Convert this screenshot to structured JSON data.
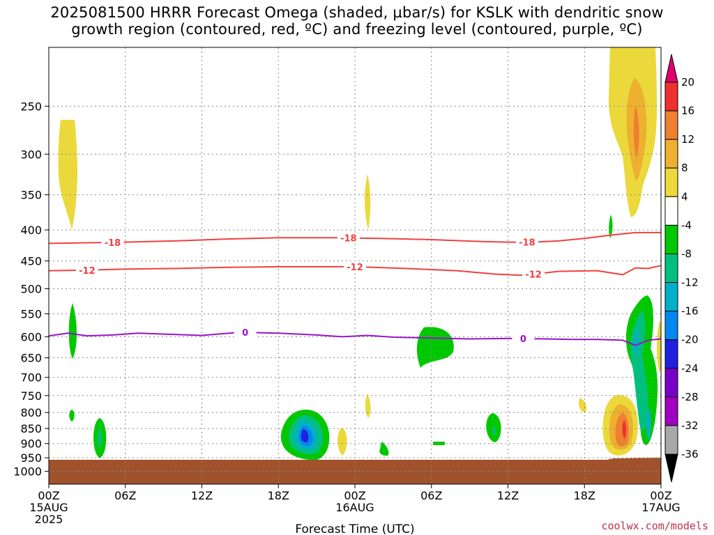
{
  "title": {
    "line1": "2025081500 HRRR Forecast Omega (shaded, µbar/s) for KSLK with dendritic snow",
    "line2": "growth region (contoured, red, ºC) and freezing level (contoured, purple, ºC)"
  },
  "credit": "coolwx.com/models",
  "chart_data": {
    "type": "time-height contour",
    "xlabel": "Forecast Time (UTC)",
    "ylabel": "",
    "x_ticks": [
      {
        "hour": 0,
        "label": [
          "00Z",
          "15AUG",
          "2025"
        ]
      },
      {
        "hour": 6,
        "label": [
          "06Z"
        ]
      },
      {
        "hour": 12,
        "label": [
          "12Z"
        ]
      },
      {
        "hour": 18,
        "label": [
          "18Z"
        ]
      },
      {
        "hour": 24,
        "label": [
          "00Z",
          "16AUG"
        ]
      },
      {
        "hour": 30,
        "label": [
          "06Z"
        ]
      },
      {
        "hour": 36,
        "label": [
          "12Z"
        ]
      },
      {
        "hour": 42,
        "label": [
          "18Z"
        ]
      },
      {
        "hour": 48,
        "label": [
          "00Z",
          "17AUG"
        ]
      }
    ],
    "x_range_hours": [
      0,
      48
    ],
    "y_axis": {
      "scale": "log-pressure",
      "range_mb": [
        1050,
        200
      ],
      "ticks_mb": [
        250,
        300,
        350,
        400,
        450,
        500,
        550,
        600,
        650,
        700,
        750,
        800,
        850,
        900,
        950,
        1000
      ]
    },
    "grid": true,
    "colorbar": {
      "levels": [
        20,
        16,
        12,
        8,
        4,
        -4,
        -8,
        -12,
        -16,
        -20,
        -24,
        -28,
        -32,
        -36
      ],
      "colors": [
        "#e0006e",
        "#ee3030",
        "#ee8030",
        "#eeb030",
        "#ebd93c",
        "#ffffff",
        "#00c800",
        "#00c080",
        "#00b0c8",
        "#0088f0",
        "#2020e0",
        "#7800c8",
        "#a000c0",
        "#a8a8a8",
        "#000000"
      ]
    },
    "terrain_color": "#a0522d",
    "contours": [
      {
        "name": "dgz_minus18",
        "label": "-18",
        "color": "#f04040",
        "points": [
          [
            0,
            421
          ],
          [
            3,
            420
          ],
          [
            6,
            419
          ],
          [
            10,
            417
          ],
          [
            14,
            414
          ],
          [
            18,
            412
          ],
          [
            22,
            412
          ],
          [
            26,
            413
          ],
          [
            30,
            415
          ],
          [
            34,
            418
          ],
          [
            36,
            419
          ],
          [
            38,
            419
          ],
          [
            40,
            417
          ],
          [
            42,
            413
          ],
          [
            44,
            408
          ],
          [
            46,
            404
          ],
          [
            48,
            404
          ]
        ],
        "label_hours": [
          5,
          23.5,
          37.5
        ]
      },
      {
        "name": "dgz_minus12",
        "label": "-12",
        "color": "#f04040",
        "points": [
          [
            0,
            467
          ],
          [
            3,
            466
          ],
          [
            6,
            464
          ],
          [
            10,
            463
          ],
          [
            14,
            461
          ],
          [
            18,
            460
          ],
          [
            22,
            460
          ],
          [
            24,
            460
          ],
          [
            28,
            463
          ],
          [
            32,
            467
          ],
          [
            35,
            473
          ],
          [
            37,
            475
          ],
          [
            38,
            473
          ],
          [
            40,
            468
          ],
          [
            43,
            467
          ],
          [
            45,
            474
          ],
          [
            46,
            462
          ],
          [
            47,
            463
          ],
          [
            48,
            458
          ]
        ],
        "label_hours": [
          3,
          24,
          38
        ]
      },
      {
        "name": "freezing_level",
        "label": "0",
        "color": "#9a12c8",
        "points": [
          [
            0,
            598
          ],
          [
            1.5,
            592
          ],
          [
            3,
            598
          ],
          [
            5,
            596
          ],
          [
            7,
            592
          ],
          [
            10,
            595
          ],
          [
            12,
            597
          ],
          [
            15,
            590
          ],
          [
            18,
            592
          ],
          [
            21,
            596
          ],
          [
            23,
            600
          ],
          [
            25,
            597
          ],
          [
            27,
            601
          ],
          [
            30,
            603
          ],
          [
            33,
            605
          ],
          [
            36,
            604
          ],
          [
            39,
            605
          ],
          [
            41,
            606
          ],
          [
            43,
            606
          ],
          [
            45,
            608
          ],
          [
            46,
            620
          ],
          [
            47,
            608
          ],
          [
            48,
            605
          ]
        ],
        "label_hours": [
          15.4,
          37.2
        ]
      }
    ],
    "omega_features": [
      {
        "kind": "upward",
        "value": -8,
        "hour": 1.9,
        "p_top": 565,
        "p_bot": 660
      },
      {
        "kind": "upward",
        "value": -8,
        "hour": 1.9,
        "p_top": 790,
        "p_bot": 810
      },
      {
        "kind": "upward",
        "value": -8,
        "hour": 4.0,
        "p_top": 825,
        "p_bot": 945
      },
      {
        "kind": "upward",
        "value": -20,
        "hour": 20.0,
        "p_top": 810,
        "p_bot": 940
      },
      {
        "kind": "upward",
        "value": -8,
        "hour": 30.0,
        "p_top": 610,
        "p_bot": 700
      },
      {
        "kind": "upward",
        "value": -12,
        "hour": 35.0,
        "p_top": 800,
        "p_bot": 890
      },
      {
        "kind": "upward",
        "value": -8,
        "hour": 25.5,
        "p_top": 905,
        "p_bot": 950
      },
      {
        "kind": "upward",
        "value": -12,
        "hour": 46.3,
        "p_top": 590,
        "p_bot": 840
      },
      {
        "kind": "downward",
        "value": 8,
        "hour": 1.5,
        "p_top": 270,
        "p_bot": 400
      },
      {
        "kind": "downward",
        "value": 4,
        "hour": 24.8,
        "p_top": 340,
        "p_bot": 390
      },
      {
        "kind": "downward",
        "value": 4,
        "hour": 23.0,
        "p_top": 870,
        "p_bot": 950
      },
      {
        "kind": "downward",
        "value": 16,
        "hour": 45.5,
        "p_top": 200,
        "p_bot": 380
      },
      {
        "kind": "downward",
        "value": 16,
        "hour": 45.2,
        "p_top": 775,
        "p_bot": 970
      }
    ]
  }
}
